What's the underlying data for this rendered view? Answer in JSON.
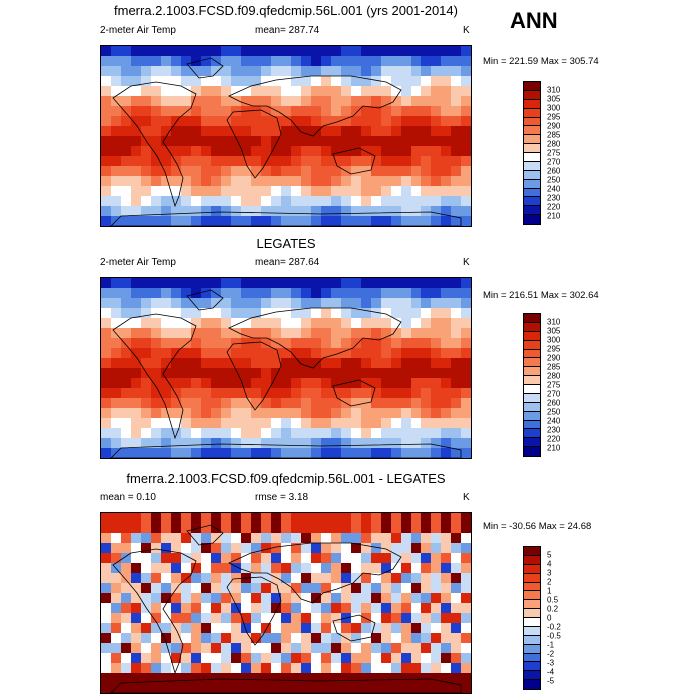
{
  "season": "ANN",
  "panels": [
    {
      "title": "fmerra.2.1003.FCSD.f09.qfedcmip.56L.001 (yrs 2001-2014)",
      "left_label": "2-meter Air Temp",
      "center_label": "mean= 287.74",
      "units": "K",
      "minmax": "Min = 221.59 Max = 305.74",
      "colorbar_labels": [
        "310",
        "305",
        "300",
        "295",
        "290",
        "285",
        "280",
        "275",
        "270",
        "260",
        "250",
        "240",
        "230",
        "220",
        "210"
      ],
      "colorbar_colors": [
        "#7a0000",
        "#b30f00",
        "#d9260b",
        "#e8401c",
        "#f05a33",
        "#f5794f",
        "#f9a177",
        "#fbc9ad",
        "#ffffff",
        "#c9dcf5",
        "#9dc1ee",
        "#6b9be4",
        "#3f6fdc",
        "#1d3fd0",
        "#0a14a8",
        "#00008a"
      ],
      "map_type": "mean"
    },
    {
      "title": "LEGATES",
      "left_label": "2-meter Air Temp",
      "center_label": "mean= 287.64",
      "units": "K",
      "minmax": "Min = 216.51 Max = 302.64",
      "colorbar_labels": [
        "310",
        "305",
        "300",
        "295",
        "290",
        "285",
        "280",
        "275",
        "270",
        "260",
        "250",
        "240",
        "230",
        "220",
        "210"
      ],
      "colorbar_colors": [
        "#7a0000",
        "#b30f00",
        "#d9260b",
        "#e8401c",
        "#f05a33",
        "#f5794f",
        "#f9a177",
        "#fbc9ad",
        "#ffffff",
        "#c9dcf5",
        "#9dc1ee",
        "#6b9be4",
        "#3f6fdc",
        "#1d3fd0",
        "#0a14a8",
        "#00008a"
      ],
      "map_type": "mean"
    },
    {
      "title": "fmerra.2.1003.FCSD.f09.qfedcmip.56L.001 - LEGATES",
      "left_label": "mean =   0.10",
      "center_label": "rmse =   3.18",
      "units": "K",
      "minmax": "Min = -30.56 Max =  24.68",
      "colorbar_labels": [
        "5",
        "4",
        "3",
        "2",
        "1",
        "0.5",
        "0.2",
        "0",
        "-0.2",
        "-0.5",
        "-1",
        "-2",
        "-3",
        "-4",
        "-5"
      ],
      "colorbar_colors": [
        "#7a0000",
        "#b30f00",
        "#d9260b",
        "#e8401c",
        "#f05a33",
        "#f5794f",
        "#f9a177",
        "#fbc9ad",
        "#ffffff",
        "#c9dcf5",
        "#9dc1ee",
        "#6b9be4",
        "#3f6fdc",
        "#1d3fd0",
        "#0a14a8",
        "#00008a"
      ],
      "map_type": "diff"
    }
  ]
}
